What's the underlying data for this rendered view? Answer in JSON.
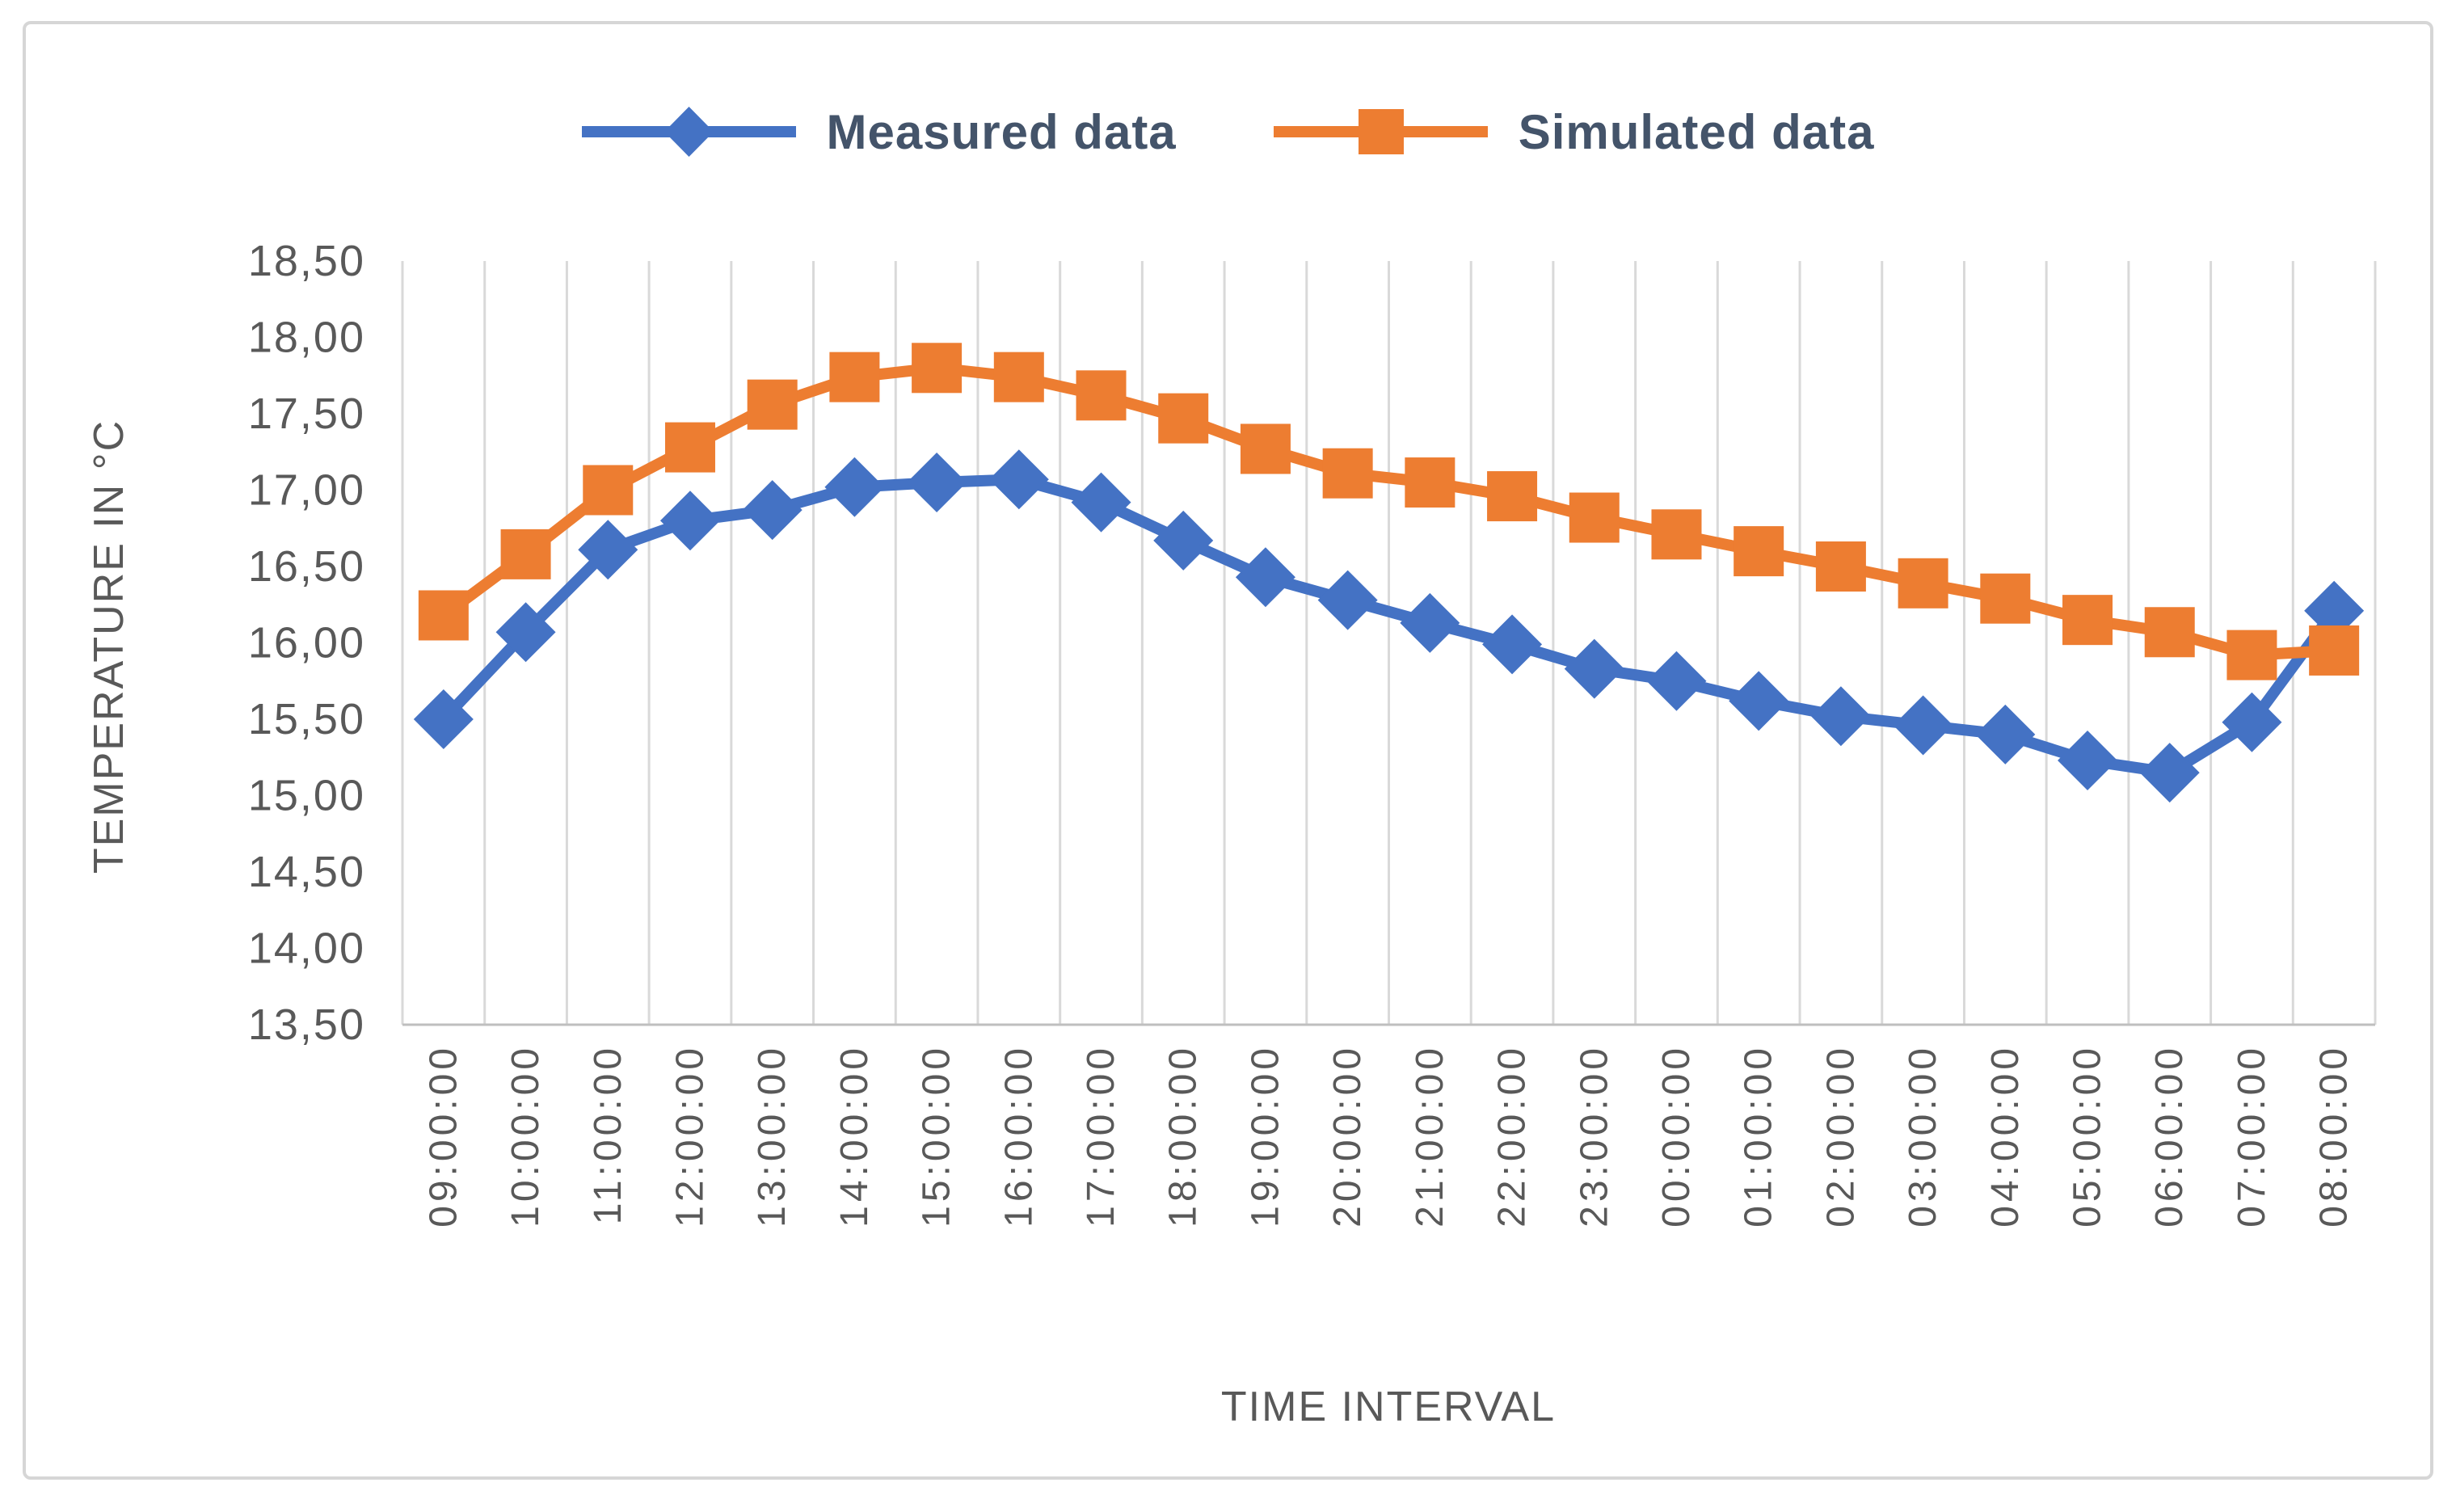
{
  "legend": {
    "items": [
      {
        "label": "Measured data",
        "color": "#4472c4",
        "marker": "diamond"
      },
      {
        "label": "Simulated data",
        "color": "#ed7d31",
        "marker": "square"
      }
    ]
  },
  "axes": {
    "y_title": "TEMPERATURE IN °C",
    "x_title": "TIME INTERVAL"
  },
  "chart_data": {
    "type": "line",
    "title": "",
    "xlabel": "TIME INTERVAL",
    "ylabel": "TEMPERATURE IN °C",
    "ylim": [
      13.5,
      18.5
    ],
    "ystep": 0.5,
    "y_tick_labels": [
      "13,50",
      "14,00",
      "14,50",
      "15,00",
      "15,50",
      "16,00",
      "16,50",
      "17,00",
      "17,50",
      "18,00",
      "18,50"
    ],
    "decimal_separator": ",",
    "grid": "vertical-only",
    "legend_position": "top",
    "categories": [
      "09:00:00",
      "10:00:00",
      "11:00:00",
      "12:00:00",
      "13:00:00",
      "14:00:00",
      "15:00:00",
      "16:00:00",
      "17:00:00",
      "18:00:00",
      "19:00:00",
      "20:00:00",
      "21:00:00",
      "22:00:00",
      "23:00:00",
      "00:00:00",
      "01:00:00",
      "02:00:00",
      "03:00:00",
      "04:00:00",
      "05:00:00",
      "06:00:00",
      "07:00:00",
      "08:00:00"
    ],
    "series": [
      {
        "name": "Measured data",
        "color": "#4472c4",
        "marker": "diamond",
        "values": [
          15.5,
          16.07,
          16.61,
          16.8,
          16.87,
          17.02,
          17.05,
          17.07,
          16.92,
          16.67,
          16.43,
          16.28,
          16.13,
          15.99,
          15.83,
          15.75,
          15.62,
          15.52,
          15.46,
          15.4,
          15.23,
          15.15,
          15.48,
          16.21
        ]
      },
      {
        "name": "Simulated data",
        "color": "#ed7d31",
        "marker": "square",
        "values": [
          16.18,
          16.58,
          17.0,
          17.28,
          17.56,
          17.74,
          17.8,
          17.74,
          17.62,
          17.47,
          17.27,
          17.11,
          17.05,
          16.96,
          16.82,
          16.71,
          16.6,
          16.5,
          16.39,
          16.29,
          16.15,
          16.07,
          15.92,
          15.95
        ]
      }
    ]
  },
  "colors": {
    "measured": "#4472c4",
    "simulated": "#ed7d31",
    "legend_text": "#44546a",
    "tick_text": "#595959",
    "gridline": "#d9d9d9",
    "axis_line": "#bfbfbf",
    "border": "#d6d6d6",
    "background": "#ffffff"
  }
}
